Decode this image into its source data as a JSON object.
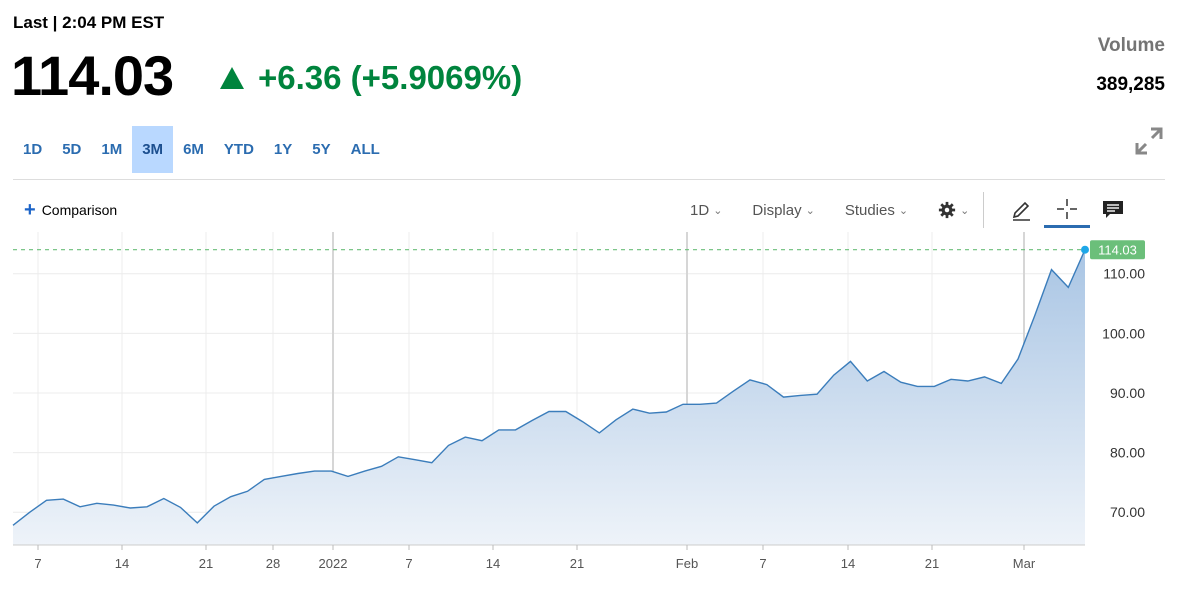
{
  "header": {
    "last_label": "Last | 2:04 PM EST",
    "price": "114.03",
    "change": "+6.36 (+5.9069%)",
    "volume_label": "Volume",
    "volume_value": "389,285"
  },
  "ranges": [
    "1D",
    "5D",
    "1M",
    "3M",
    "6M",
    "YTD",
    "1Y",
    "5Y",
    "ALL"
  ],
  "selected_range": "3M",
  "toolbar": {
    "comparison_label": "Comparison",
    "interval_label": "1D",
    "display_label": "Display",
    "studies_label": "Studies"
  },
  "colors": {
    "line": "#3b7dbb",
    "fill_top": "#a9c5e4",
    "fill_bottom": "#eef3f9",
    "last_badge": "#6bbf7a",
    "up": "#00843d"
  },
  "chart_data": {
    "type": "area",
    "x_ticks": [
      "7",
      "14",
      "21",
      "28",
      "2022",
      "7",
      "14",
      "21",
      "Feb",
      "7",
      "14",
      "21",
      "Mar"
    ],
    "y_ticks": [
      "70.00",
      "80.00",
      "90.00",
      "100.00",
      "110.00"
    ],
    "ylim": [
      64.5,
      117
    ],
    "last_value_label": "114.03",
    "values": [
      67.8,
      70.0,
      72.0,
      72.2,
      70.9,
      71.5,
      71.2,
      70.7,
      70.9,
      72.3,
      70.8,
      68.2,
      71.0,
      72.6,
      73.5,
      75.5,
      76.0,
      76.5,
      76.9,
      76.9,
      76.0,
      76.9,
      77.7,
      79.3,
      78.8,
      78.3,
      81.2,
      82.6,
      82.0,
      83.8,
      83.8,
      85.4,
      86.9,
      86.9,
      85.2,
      83.3,
      85.5,
      87.3,
      86.6,
      86.8,
      88.1,
      88.1,
      88.3,
      90.3,
      92.2,
      91.4,
      89.3,
      89.6,
      89.8,
      93.0,
      95.3,
      92.0,
      93.6,
      91.8,
      91.1,
      91.1,
      92.3,
      92.0,
      92.7,
      91.6,
      95.7,
      103.0,
      110.7,
      107.7,
      114.03
    ]
  }
}
